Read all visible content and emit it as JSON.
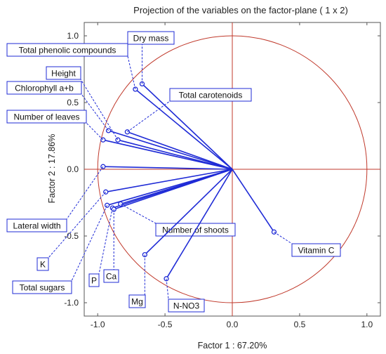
{
  "chart_data": {
    "type": "scatter",
    "title": "Projection of the variables on the factor-plane (  1 x   2)",
    "xlabel": "Factor 1 : 67.20%",
    "ylabel": "Factor 2 : 17.86%",
    "xlim": [
      -1.1,
      1.1
    ],
    "ylim": [
      -1.1,
      1.1
    ],
    "xticks": [
      "-1.0",
      "-0.5",
      "0.0",
      "0.5",
      "1.0"
    ],
    "yticks": [
      "1.0",
      "0.5",
      "0.0",
      "-0.5",
      "-1.0"
    ],
    "unit_circle": true,
    "grid": false,
    "zero_lines": true,
    "colors": {
      "vectors": "#1f2bd6",
      "circle": "#c0392b",
      "zero_lines": "#c0392b",
      "label_box": "#1f2bd6"
    },
    "variables": [
      {
        "name": "Dry mass",
        "x": -0.67,
        "y": 0.64
      },
      {
        "name": "Total phenolic compounds",
        "x": -0.72,
        "y": 0.6
      },
      {
        "name": "Total carotenoids",
        "x": -0.78,
        "y": 0.28
      },
      {
        "name": "Height",
        "x": -0.85,
        "y": 0.22
      },
      {
        "name": "Chlorophyll a+b",
        "x": -0.92,
        "y": 0.29
      },
      {
        "name": "Number of leaves",
        "x": -0.96,
        "y": 0.22
      },
      {
        "name": "Lateral width",
        "x": -0.96,
        "y": 0.02
      },
      {
        "name": "K",
        "x": -0.94,
        "y": -0.17
      },
      {
        "name": "Total sugars",
        "x": -0.93,
        "y": -0.27
      },
      {
        "name": "P",
        "x": -0.89,
        "y": -0.29
      },
      {
        "name": "Ca",
        "x": -0.88,
        "y": -0.3
      },
      {
        "name": "Number of shoots",
        "x": -0.83,
        "y": -0.26
      },
      {
        "name": "Mg",
        "x": -0.65,
        "y": -0.64
      },
      {
        "name": "N-NO3",
        "x": -0.49,
        "y": -0.82
      },
      {
        "name": "Vitamin C",
        "x": 0.31,
        "y": -0.47
      }
    ]
  }
}
